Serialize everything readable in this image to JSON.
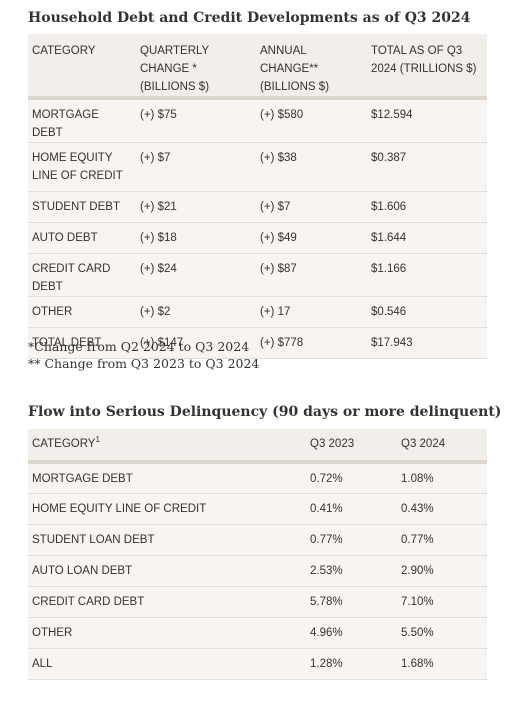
{
  "debt_table": {
    "title": "Household Debt and Credit Developments as of Q3 2024",
    "headers": [
      "CATEGORY",
      "QUARTERLY CHANGE * (BILLIONS $)",
      "ANNUAL CHANGE** (BILLIONS $)",
      "TOTAL AS OF Q3 2024 (TRILLIONS $)"
    ],
    "rows": [
      [
        "MORTGAGE DEBT",
        "(+) $75",
        "(+) $580",
        "$12.594"
      ],
      [
        "HOME EQUITY LINE OF CREDIT",
        "(+) $7",
        "(+) $38",
        "$0.387"
      ],
      [
        "STUDENT DEBT",
        "(+) $21",
        "(+) $7",
        "$1.606"
      ],
      [
        "AUTO DEBT",
        "(+) $18",
        "(+) $49",
        "$1.644"
      ],
      [
        "CREDIT CARD DEBT",
        "(+) $24",
        "(+) $87",
        "$1.166"
      ],
      [
        "OTHER",
        "(+) $2",
        "(+) 17",
        "$0.546"
      ],
      [
        "TOTAL DEBT",
        "(+) $147",
        "(+) $778",
        "$17.943"
      ]
    ]
  },
  "notes": [
    "*Change from Q2 2024 to Q3 2024",
    "** Change from Q3 2023 to Q3 2024"
  ],
  "delinquency_table": {
    "title": "Flow into Serious Delinquency (90 days or more delinquent)",
    "headers": [
      "CATEGORY",
      "Q3 2023",
      "Q3 2024"
    ],
    "header_footnote": "1",
    "rows": [
      [
        "MORTGAGE DEBT",
        "0.72%",
        "1.08%"
      ],
      [
        "HOME EQUITY LINE OF CREDIT",
        "0.41%",
        "0.43%"
      ],
      [
        "STUDENT LOAN DEBT",
        "0.77%",
        "0.77%"
      ],
      [
        "AUTO LOAN DEBT",
        "2.53%",
        "2.90%"
      ],
      [
        "CREDIT CARD DEBT",
        "5.78%",
        "7.10%"
      ],
      [
        "OTHER",
        "4.96%",
        "5.50%"
      ],
      [
        "ALL",
        "1.28%",
        "1.68%"
      ]
    ]
  },
  "colors": {
    "header_bg": "#f2eee9",
    "row_bg": "#f7f4f1",
    "header_rule": "#dcd6cf",
    "row_rule": "#e3ddd6",
    "text": "#333333"
  }
}
